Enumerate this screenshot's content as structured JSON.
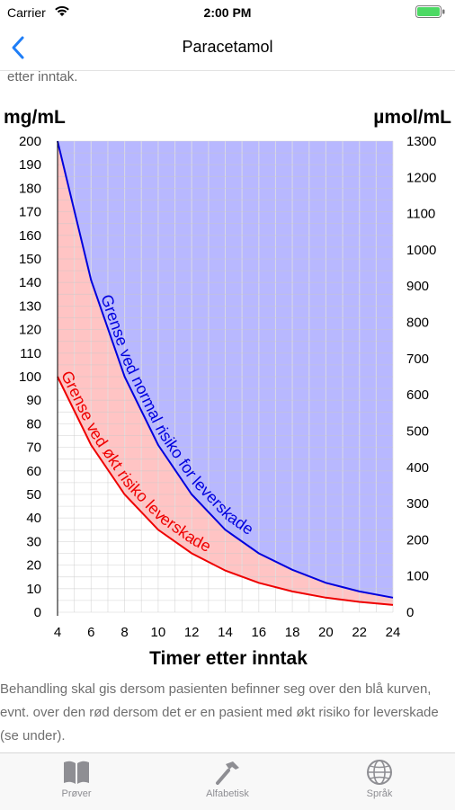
{
  "status": {
    "carrier": "Carrier",
    "time": "2:00 PM"
  },
  "nav": {
    "title": "Paracetamol"
  },
  "content": {
    "top_text": "etter inntak.",
    "bottom_text": "Behandling skal gis dersom pasienten befinner seg over den blå kurven, evnt. over den rød dersom det er en pasient med økt risiko for leverskade (se under)."
  },
  "chart_data": {
    "type": "area",
    "xlabel": "Timer etter inntak",
    "ylabel_left": "mg/mL",
    "ylabel_right": "µmol/mL",
    "xlim": [
      4,
      24
    ],
    "ylim_left": [
      0,
      200
    ],
    "ylim_right": [
      0,
      1300
    ],
    "x_ticks": [
      4,
      6,
      8,
      10,
      12,
      14,
      16,
      18,
      20,
      22,
      24
    ],
    "y_ticks_left": [
      0,
      10,
      20,
      30,
      40,
      50,
      60,
      70,
      80,
      90,
      100,
      110,
      120,
      130,
      140,
      150,
      160,
      170,
      180,
      190,
      200
    ],
    "y_ticks_right": [
      0,
      100,
      200,
      300,
      400,
      500,
      600,
      700,
      800,
      900,
      1000,
      1100,
      1200,
      1300
    ],
    "series": [
      {
        "name": "Grense ved normal risiko for leverskade",
        "color": "#0000dd",
        "fill": "#b8b8ff",
        "x": [
          4,
          6,
          8,
          10,
          12,
          14,
          16,
          18,
          20,
          22,
          24
        ],
        "values": [
          200,
          141,
          100,
          71,
          50,
          35,
          25,
          18,
          12.5,
          8.8,
          6.2
        ]
      },
      {
        "name": "Grense ved økt risiko leverskade",
        "color": "#ee0000",
        "fill": "#ffc4c4",
        "x": [
          4,
          6,
          8,
          10,
          12,
          14,
          16,
          18,
          20,
          22,
          24
        ],
        "values": [
          100,
          71,
          50,
          35,
          25,
          17.7,
          12.5,
          8.8,
          6.2,
          4.4,
          3.1
        ]
      }
    ],
    "grid": true
  },
  "tabs": [
    {
      "label": "Prøver",
      "icon": "book-icon"
    },
    {
      "label": "Alfabetisk",
      "icon": "hammer-icon"
    },
    {
      "label": "Språk",
      "icon": "globe-icon"
    }
  ]
}
